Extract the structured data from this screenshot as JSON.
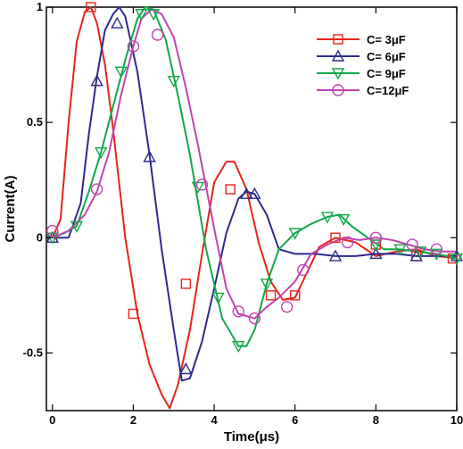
{
  "chart_data": {
    "type": "line",
    "xlabel": "Time(μs)",
    "ylabel": "Current(A)",
    "xlim": [
      -0.15,
      10.0
    ],
    "ylim": [
      -0.75,
      1.0
    ],
    "x_ticks": [
      0,
      2,
      4,
      6,
      8,
      10
    ],
    "x_tick_labels": [
      "0",
      "2",
      "4",
      "6",
      "8",
      "10"
    ],
    "y_ticks": [
      -0.5,
      0,
      0.5,
      1
    ],
    "y_tick_labels": [
      "-0.5",
      "0",
      "0.5",
      "1"
    ],
    "grid": false,
    "legend_position": "top-right",
    "series": [
      {
        "name": "C= 3μF",
        "color": "#e8231b",
        "marker": "square",
        "x": [
          0,
          0.2,
          0.4,
          0.6,
          0.8,
          0.95,
          1.1,
          1.3,
          1.5,
          1.8,
          2.1,
          2.4,
          2.7,
          2.9,
          3.1,
          3.4,
          3.7,
          4.0,
          4.3,
          4.5,
          4.8,
          5.1,
          5.4,
          5.7,
          6.0,
          6.3,
          6.6,
          7.0,
          7.5,
          8.0,
          8.5,
          9.0,
          9.5,
          10.0
        ],
        "y": [
          0.0,
          0.08,
          0.5,
          0.85,
          0.98,
          1.0,
          0.93,
          0.75,
          0.47,
          0.0,
          -0.33,
          -0.55,
          -0.68,
          -0.74,
          -0.64,
          -0.4,
          -0.07,
          0.24,
          0.33,
          0.33,
          0.21,
          -0.02,
          -0.19,
          -0.27,
          -0.26,
          -0.15,
          -0.04,
          0.0,
          -0.02,
          -0.08,
          -0.06,
          -0.05,
          -0.08,
          -0.09
        ],
        "marker_x": [
          0,
          0.95,
          2.0,
          3.3,
          4.4,
          5.4,
          6.0,
          7.0,
          8.0,
          9.0,
          9.9
        ],
        "marker_y": [
          0.0,
          1.0,
          -0.33,
          -0.2,
          0.21,
          -0.25,
          -0.25,
          0.0,
          -0.03,
          -0.08,
          -0.09
        ]
      },
      {
        "name": "C= 6μF",
        "color": "#2b2b8f",
        "marker": "triangle-up",
        "x": [
          0,
          0.4,
          0.7,
          0.9,
          1.1,
          1.3,
          1.5,
          1.65,
          1.8,
          2.1,
          2.4,
          2.7,
          3.0,
          3.2,
          3.4,
          3.7,
          4.0,
          4.3,
          4.6,
          4.8,
          5.0,
          5.3,
          5.6,
          6.0,
          6.5,
          7.0,
          7.5,
          8.0,
          8.5,
          9.0,
          9.5,
          10.0
        ],
        "y": [
          0.0,
          0.0,
          0.15,
          0.45,
          0.7,
          0.9,
          0.97,
          1.0,
          0.96,
          0.72,
          0.36,
          -0.05,
          -0.4,
          -0.62,
          -0.61,
          -0.45,
          -0.22,
          0.02,
          0.17,
          0.2,
          0.19,
          0.1,
          -0.05,
          -0.07,
          -0.07,
          -0.08,
          -0.08,
          -0.07,
          -0.07,
          -0.08,
          -0.08,
          -0.08
        ],
        "marker_x": [
          0,
          1.1,
          1.6,
          2.4,
          3.3,
          4.8,
          5.0,
          7.0,
          8.0,
          9.0,
          10.0
        ],
        "marker_y": [
          0.0,
          0.68,
          0.93,
          0.35,
          -0.57,
          0.19,
          0.19,
          -0.08,
          -0.07,
          -0.08,
          -0.08
        ]
      },
      {
        "name": "C= 9μF",
        "color": "#11a84a",
        "marker": "triangle-down",
        "x": [
          0,
          0.3,
          0.6,
          0.9,
          1.2,
          1.5,
          1.8,
          2.1,
          2.3,
          2.5,
          2.8,
          3.1,
          3.4,
          3.8,
          4.2,
          4.6,
          4.8,
          5.0,
          5.3,
          5.6,
          6.0,
          6.4,
          6.8,
          7.1,
          7.4,
          7.8,
          8.2,
          8.6,
          9.0,
          9.5,
          10.0
        ],
        "y": [
          0.0,
          0.02,
          0.05,
          0.2,
          0.37,
          0.57,
          0.77,
          0.95,
          1.0,
          0.99,
          0.86,
          0.62,
          0.36,
          -0.05,
          -0.35,
          -0.47,
          -0.47,
          -0.4,
          -0.2,
          -0.05,
          0.02,
          0.06,
          0.09,
          0.1,
          0.05,
          0.0,
          -0.05,
          -0.05,
          -0.06,
          -0.07,
          -0.09
        ],
        "marker_x": [
          0,
          0.6,
          1.2,
          1.7,
          2.2,
          2.5,
          3.0,
          3.6,
          4.1,
          4.6,
          5.3,
          6.0,
          6.8,
          7.2,
          8.0,
          8.6,
          9.1,
          9.5,
          10.0
        ],
        "marker_y": [
          0.0,
          0.05,
          0.37,
          0.72,
          0.97,
          0.97,
          0.68,
          0.22,
          -0.26,
          -0.47,
          -0.2,
          0.02,
          0.09,
          0.08,
          -0.03,
          -0.05,
          -0.06,
          -0.07,
          -0.09
        ],
        "legend_only": false
      },
      {
        "name": "C=12μF",
        "color": "#c044b0",
        "marker": "circle",
        "x": [
          0,
          0.4,
          0.8,
          1.1,
          1.4,
          1.7,
          2.0,
          2.2,
          2.45,
          2.7,
          3.0,
          3.3,
          3.6,
          4.0,
          4.3,
          4.6,
          5.0,
          5.3,
          5.6,
          6.0,
          6.4,
          6.8,
          7.2,
          7.6,
          8.0,
          8.4,
          8.8,
          9.2,
          9.6,
          10.0
        ],
        "y": [
          0.0,
          0.03,
          0.1,
          0.2,
          0.37,
          0.62,
          0.83,
          0.95,
          0.99,
          0.97,
          0.87,
          0.65,
          0.4,
          0.04,
          -0.22,
          -0.33,
          -0.35,
          -0.3,
          -0.26,
          -0.19,
          -0.07,
          -0.03,
          0.0,
          -0.01,
          0.0,
          -0.01,
          -0.03,
          -0.05,
          -0.06,
          -0.06
        ],
        "marker_x": [
          0,
          1.1,
          2.0,
          2.6,
          3.7,
          4.6,
          5.0,
          5.8,
          6.2,
          7.3,
          8.0,
          8.9,
          9.5
        ],
        "marker_y": [
          0.03,
          0.21,
          0.83,
          0.88,
          0.23,
          -0.32,
          -0.35,
          -0.3,
          -0.14,
          -0.02,
          0.0,
          -0.03,
          -0.05
        ]
      }
    ]
  }
}
